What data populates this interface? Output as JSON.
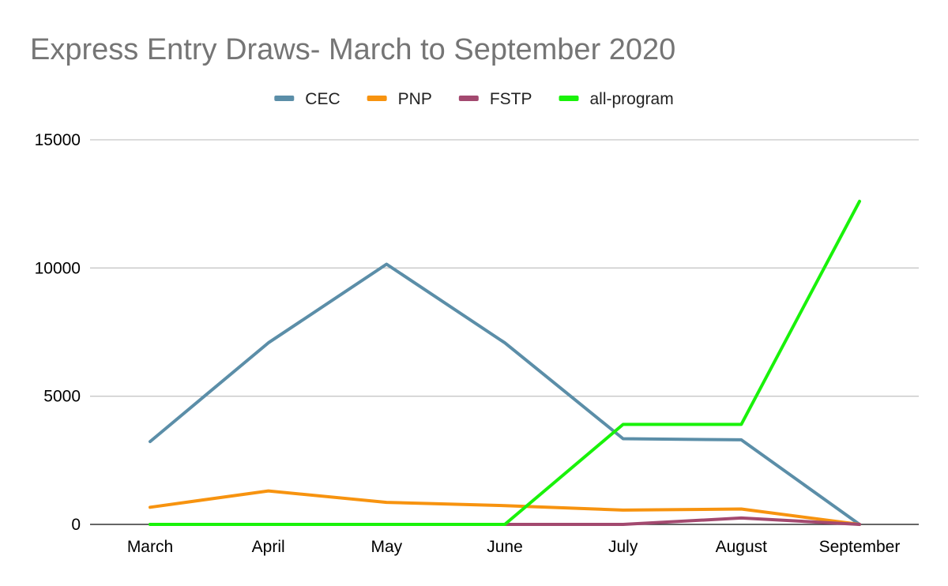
{
  "chart_data": {
    "type": "line",
    "title": "Express Entry Draws- March to September 2020",
    "xlabel": "",
    "ylabel": "",
    "categories": [
      "March",
      "April",
      "May",
      "June",
      "July",
      "August",
      "September"
    ],
    "ylim": [
      0,
      15000
    ],
    "yticks": [
      0,
      5000,
      10000,
      15000
    ],
    "ytick_labels": [
      "0",
      "5000",
      "10000",
      "15000"
    ],
    "grid": true,
    "legend_position": "top-center",
    "series": [
      {
        "name": "CEC",
        "color": "#5b8ea8",
        "values": [
          3232,
          7080,
          10150,
          7080,
          3343,
          3300,
          0
        ]
      },
      {
        "name": "PNP",
        "color": "#f7930f",
        "values": [
          668,
          1305,
          860,
          732,
          557,
          600,
          0
        ]
      },
      {
        "name": "FSTP",
        "color": "#a3496f",
        "values": [
          0,
          0,
          0,
          0,
          0,
          250,
          0
        ]
      },
      {
        "name": "all-program",
        "color": "#19f20a",
        "values": [
          0,
          0,
          0,
          0,
          3900,
          3900,
          12600
        ]
      }
    ]
  }
}
